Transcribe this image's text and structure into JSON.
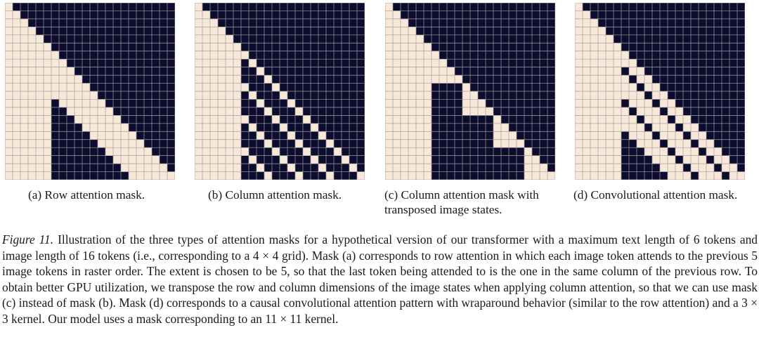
{
  "figure": {
    "panels": [
      {
        "id": "a",
        "mask_type": "row",
        "caption": "(a) Row attention mask."
      },
      {
        "id": "b",
        "mask_type": "column",
        "caption": "(b) Column attention mask."
      },
      {
        "id": "c",
        "mask_type": "column-transposed",
        "caption_line1": "(c) Column attention mask with",
        "caption_line2": "transposed image states."
      },
      {
        "id": "d",
        "mask_type": "convolutional",
        "caption": "(d) Convolutional attention mask."
      }
    ],
    "label": "Figure 11.",
    "caption_text": "Illustration of the three types of attention masks for a hypothetical version of our transformer with a maximum text length of 6 tokens and image length of 16 tokens (i.e., corresponding to a 4 × 4 grid). Mask (a) corresponds to row attention in which each image token attends to the previous 5 image tokens in raster order. The extent is chosen to be 5, so that the last token being attended to is the one in the same column of the previous row. To obtain better GPU utilization, we transpose the row and column dimensions of the image states when applying column attention, so that we can use mask (c) instead of mask (b). Mask (d) corresponds to a causal convolutional attention pattern with wraparound behavior (similar to the row attention) and a 3 × 3 kernel. Our model uses a mask corresponding to an 11 × 11 kernel.",
    "text_length": 6,
    "image_length": 16,
    "image_grid": 4,
    "row_extent": 5,
    "conv_kernel": 3,
    "colors": {
      "attend": "#f8e8d9",
      "masked": "#0c0c2f",
      "gridline": "#a49e98"
    }
  }
}
